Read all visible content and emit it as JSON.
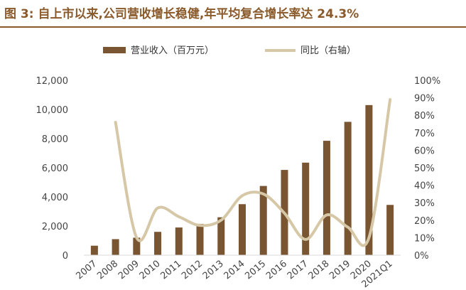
{
  "figure": {
    "title": "图 3: 自上市以来,公司营收增长稳健,年平均复合增长率达 24.3%"
  },
  "colors": {
    "bar": "#7a5531",
    "line": "#d6c7a6",
    "title": "#8b5a2b",
    "axis": "#d9d9d9"
  },
  "chart_data": {
    "type": "bar+line",
    "categories": [
      "2007",
      "2008",
      "2009",
      "2010",
      "2011",
      "2012",
      "2013",
      "2014",
      "2015",
      "2016",
      "2017",
      "2018",
      "2019",
      "2020",
      "2021Q1"
    ],
    "series": [
      {
        "name": "营业收入（百万元）",
        "type": "bar",
        "axis": "left",
        "values": [
          650,
          1100,
          1200,
          1600,
          1900,
          2150,
          2600,
          3500,
          4750,
          5850,
          6350,
          7850,
          9150,
          10300,
          3450
        ]
      },
      {
        "name": "同比（右轴）",
        "type": "line",
        "axis": "right",
        "values": [
          null,
          76,
          10,
          27,
          22,
          17,
          20,
          34,
          35,
          24,
          9,
          23,
          16,
          10,
          89
        ]
      }
    ],
    "y_left": {
      "min": 0,
      "max": 12000,
      "ticks": [
        "0",
        "2,000",
        "4,000",
        "6,000",
        "8,000",
        "10,000",
        "12,000"
      ]
    },
    "y_right": {
      "min": 0,
      "max": 100,
      "ticks": [
        "0%",
        "10%",
        "20%",
        "30%",
        "40%",
        "50%",
        "60%",
        "70%",
        "80%",
        "90%",
        "100%"
      ]
    },
    "legend_position": "top-center",
    "grid": false
  }
}
